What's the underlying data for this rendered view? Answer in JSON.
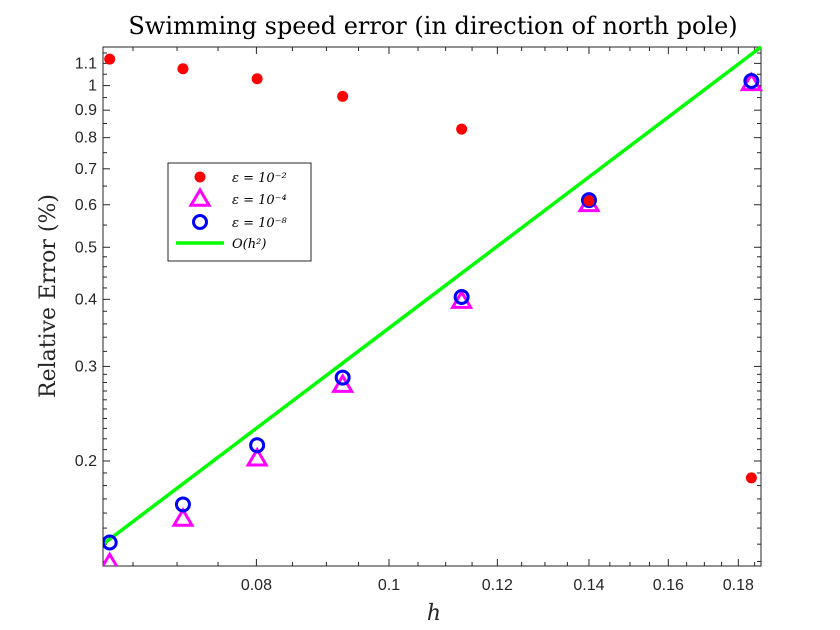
{
  "chart_data": {
    "type": "scatter",
    "title": "Swimming speed error (in direction of north pole)",
    "xlabel": "h",
    "ylabel": "Relative Error (%)",
    "xscale": "log",
    "yscale": "log",
    "xlim": [
      0.0618,
      0.187
    ],
    "ylim": [
      0.1275,
      1.18
    ],
    "xticks": [
      0.08,
      0.1,
      0.12,
      0.14,
      0.16,
      0.18
    ],
    "xtick_labels": [
      "0.08",
      "0.1",
      "0.12",
      "0.14",
      "0.16",
      "0.18"
    ],
    "yticks": [
      0.2,
      0.3,
      0.4,
      0.5,
      0.6,
      0.7,
      0.8,
      0.9,
      1.0,
      1.1
    ],
    "ytick_labels": [
      "0.2",
      "0.3",
      "0.4",
      "0.5",
      "0.6",
      "0.7",
      "0.8",
      "0.9",
      "1",
      "1.1"
    ],
    "legend_position": "upper-left",
    "series": [
      {
        "name": "eps2",
        "legend": "ε = 10⁻²",
        "marker": "dot",
        "color": "#ff0000",
        "x": [
          0.0625,
          0.0707,
          0.0801,
          0.0925,
          0.113,
          0.14,
          0.184
        ],
        "y": [
          1.12,
          1.075,
          1.03,
          0.955,
          0.83,
          0.61,
          0.186
        ]
      },
      {
        "name": "eps4",
        "legend": "ε = 10⁻⁴",
        "marker": "triangle",
        "color": "#ff00ff",
        "x": [
          0.0625,
          0.0707,
          0.0801,
          0.0925,
          0.113,
          0.14,
          0.184
        ],
        "y": [
          0.129,
          0.156,
          0.202,
          0.277,
          0.397,
          0.601,
          1.01
        ]
      },
      {
        "name": "eps8",
        "legend": "ε = 10⁻⁸",
        "marker": "circle",
        "color": "#0000ff",
        "x": [
          0.0625,
          0.0707,
          0.0801,
          0.0925,
          0.113,
          0.14,
          0.184
        ],
        "y": [
          0.141,
          0.166,
          0.214,
          0.286,
          0.404,
          0.612,
          1.02
        ]
      },
      {
        "name": "oh2",
        "legend": "O(h²)",
        "marker": "line",
        "color": "#00ff00",
        "x": [
          0.0618,
          0.187
        ],
        "y": [
          0.14,
          1.18
        ]
      }
    ]
  }
}
